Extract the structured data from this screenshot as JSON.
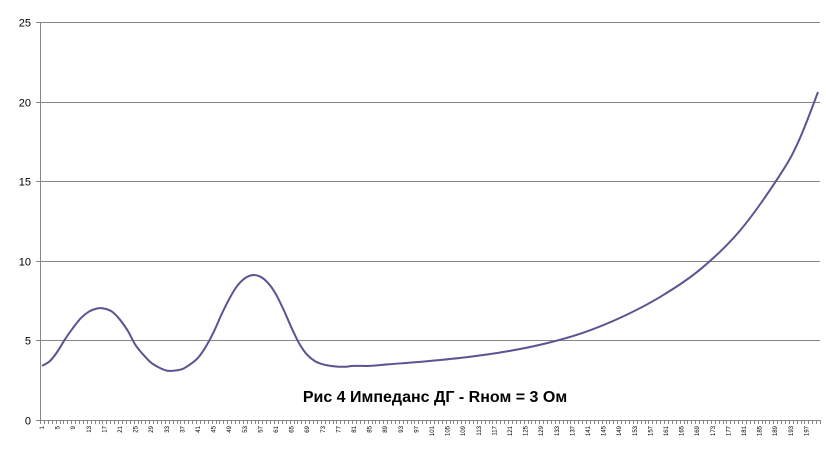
{
  "chart_data": {
    "type": "line",
    "title": "Рис 4  Импеданс ДГ  - Rном = 3 Ом",
    "xlabel": "",
    "ylabel": "",
    "ylim": [
      0,
      25
    ],
    "yticks": [
      0,
      5,
      10,
      15,
      20,
      25
    ],
    "grid": "horizontal",
    "legend": "none",
    "x_count": 200,
    "x_tick_labels": [
      "1",
      "5",
      "9",
      "13",
      "17",
      "21",
      "25",
      "29",
      "33",
      "37",
      "41",
      "45",
      "49",
      "53",
      "57",
      "61",
      "65",
      "69",
      "73",
      "77",
      "81",
      "85",
      "89",
      "93",
      "97",
      "101",
      "105",
      "109",
      "113",
      "117",
      "121",
      "125",
      "129",
      "133",
      "137",
      "141",
      "145",
      "149",
      "153",
      "157",
      "161",
      "165",
      "169",
      "173",
      "177",
      "181",
      "185",
      "189",
      "193",
      "197"
    ],
    "colors": {
      "series": "#5b5392",
      "grid": "#868686",
      "axis": "#868686"
    },
    "series": [
      {
        "x": [
          1,
          3,
          5,
          7,
          9,
          11,
          13,
          15,
          17,
          19,
          21,
          23,
          25,
          27,
          29,
          31,
          33,
          35,
          37,
          39,
          41,
          43,
          45,
          47,
          49,
          51,
          53,
          55,
          57,
          59,
          61,
          63,
          65,
          67,
          69,
          71,
          73,
          75,
          77,
          79,
          81,
          85,
          90,
          100,
          110,
          120,
          130,
          140,
          150,
          160,
          170,
          180,
          190,
          195,
          200
        ],
        "values": [
          3.4,
          3.7,
          4.3,
          5.1,
          5.8,
          6.4,
          6.8,
          7.0,
          7.0,
          6.8,
          6.3,
          5.6,
          4.7,
          4.1,
          3.6,
          3.3,
          3.1,
          3.1,
          3.2,
          3.5,
          3.9,
          4.6,
          5.5,
          6.6,
          7.6,
          8.4,
          8.9,
          9.1,
          9.0,
          8.6,
          7.9,
          6.9,
          5.8,
          4.8,
          4.1,
          3.7,
          3.5,
          3.4,
          3.35,
          3.35,
          3.4,
          3.4,
          3.5,
          3.7,
          3.95,
          4.3,
          4.8,
          5.5,
          6.5,
          7.8,
          9.5,
          11.9,
          15.3,
          17.5,
          20.6
        ]
      }
    ]
  }
}
